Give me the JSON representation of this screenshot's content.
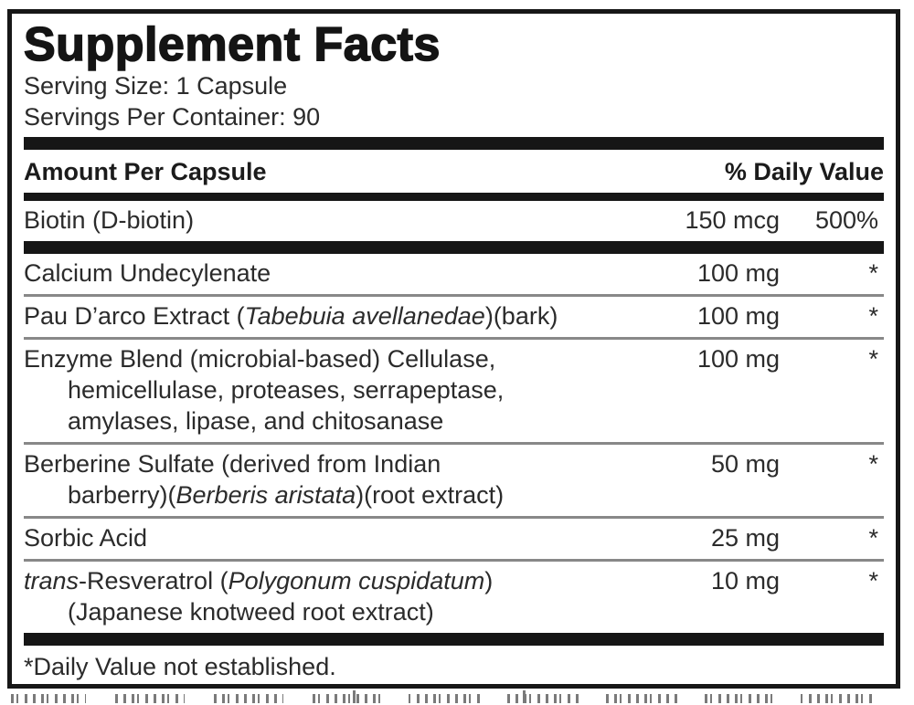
{
  "title": "Supplement Facts",
  "serving_info": {
    "serving_size": "Serving Size: 1 Capsule",
    "servings_per_container": "Servings Per Container: 90"
  },
  "table_header": {
    "amount_label": "Amount Per Capsule",
    "daily_value_label": "% Daily Value"
  },
  "primary_row": {
    "name_lines": [
      [
        {
          "t": "Biotin (D-biotin)"
        }
      ]
    ],
    "amount": "150 mcg",
    "daily_value": "500%"
  },
  "ingredient_rows": [
    {
      "name_lines": [
        [
          {
            "t": "Calcium Undecylenate"
          }
        ]
      ],
      "amount": "100 mg",
      "daily_value": "*"
    },
    {
      "name_lines": [
        [
          {
            "t": "Pau D’arco Extract ("
          },
          {
            "t": "Tabebuia avellanedae",
            "i": true
          },
          {
            "t": ")(bark)"
          }
        ]
      ],
      "amount": "100 mg",
      "daily_value": "*"
    },
    {
      "name_lines": [
        [
          {
            "t": "Enzyme Blend (microbial-based) Cellulase,"
          }
        ],
        [
          {
            "t": "hemicellulase, proteases, serrapeptase,"
          }
        ],
        [
          {
            "t": "amylases, lipase, and chitosanase"
          }
        ]
      ],
      "amount": "100 mg",
      "daily_value": "*"
    },
    {
      "name_lines": [
        [
          {
            "t": "Berberine Sulfate (derived from Indian"
          }
        ],
        [
          {
            "t": "barberry)("
          },
          {
            "t": "Berberis aristata",
            "i": true
          },
          {
            "t": ")(root extract)"
          }
        ]
      ],
      "amount": "50 mg",
      "daily_value": "*"
    },
    {
      "name_lines": [
        [
          {
            "t": "Sorbic Acid"
          }
        ]
      ],
      "amount": "25 mg",
      "daily_value": "*"
    },
    {
      "name_lines": [
        [
          {
            "t": "trans",
            "i": true
          },
          {
            "t": "-Resveratrol ("
          },
          {
            "t": "Polygonum cuspidatum",
            "i": true
          },
          {
            "t": ")"
          }
        ],
        [
          {
            "t": "(Japanese knotweed root extract)"
          }
        ]
      ],
      "amount": "10 mg",
      "daily_value": "*"
    }
  ],
  "footnote": "*Daily Value not established.",
  "colors": {
    "ink": "#1c1c1c",
    "bar": "#161616",
    "separator": "#888888",
    "background": "#ffffff"
  }
}
